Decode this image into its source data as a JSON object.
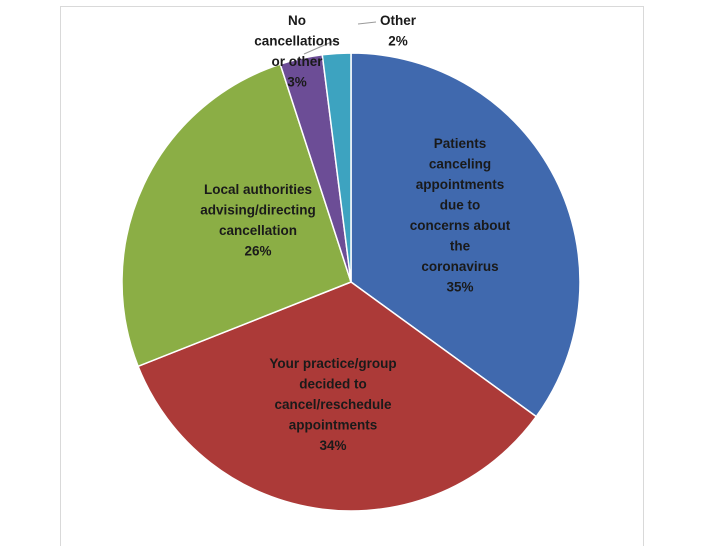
{
  "chart_data": {
    "type": "pie",
    "title": "",
    "slices": [
      {
        "label": [
          "Patients",
          "canceling",
          "appointments",
          "due to",
          "concerns about",
          "the",
          "coronavirus"
        ],
        "pct_text": "35%",
        "value": 35,
        "color": "#4069AE"
      },
      {
        "label": [
          "Your practice/group",
          "decided to",
          "cancel/reschedule",
          "appointments"
        ],
        "pct_text": "34%",
        "value": 34,
        "color": "#AC3A38"
      },
      {
        "label": [
          "Local authorities",
          "advising/directing",
          "cancellation"
        ],
        "pct_text": "26%",
        "value": 26,
        "color": "#8BAE45"
      },
      {
        "label": [
          "No",
          "cancellations",
          "or other"
        ],
        "pct_text": "3%",
        "value": 3,
        "color": "#6C4D96"
      },
      {
        "label": [
          "Other"
        ],
        "pct_text": "2%",
        "value": 2,
        "color": "#3DA3C0"
      }
    ],
    "legend": "none"
  }
}
